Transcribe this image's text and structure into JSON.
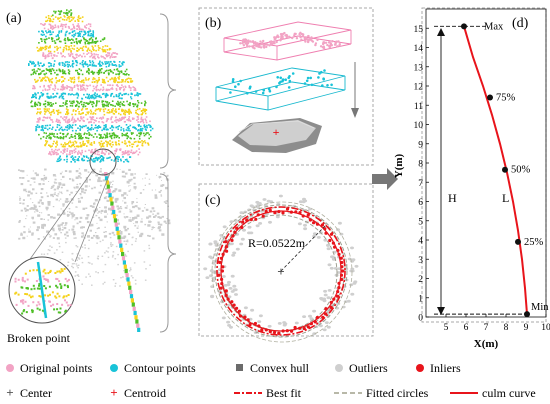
{
  "panels": {
    "a": {
      "label": "(a)",
      "callout": "Broken point"
    },
    "b": {
      "label": "(b)"
    },
    "c": {
      "label": "(c)",
      "radius_text": "R=0.0522m"
    },
    "d": {
      "label": "(d)"
    }
  },
  "chart_data": {
    "type": "line",
    "xlabel": "X(m)",
    "ylabel": "Y(m)",
    "xlim": [
      4,
      10
    ],
    "ylim": [
      0,
      16
    ],
    "x_ticks": [
      "5",
      "6",
      "7",
      "8",
      "9",
      "10"
    ],
    "y_ticks": [
      "0",
      "1",
      "2",
      "3",
      "4",
      "5",
      "6",
      "7",
      "8",
      "9",
      "10",
      "11",
      "12",
      "13",
      "14",
      "15"
    ],
    "series": [
      {
        "name": "culm curve",
        "color": "#e8141b",
        "x": [
          9.05,
          8.95,
          8.8,
          8.6,
          8.35,
          8.05,
          7.7,
          7.3,
          6.85,
          6.35,
          5.9
        ],
        "y": [
          0.15,
          1.5,
          3.0,
          4.5,
          6.0,
          7.5,
          9.0,
          10.5,
          12.0,
          13.5,
          15.1
        ]
      }
    ],
    "points": [
      {
        "x": 9.05,
        "y": 0.15,
        "label": "Min"
      },
      {
        "x": 8.6,
        "y": 3.9,
        "label": "25%"
      },
      {
        "x": 7.95,
        "y": 7.65,
        "label": "50%"
      },
      {
        "x": 7.2,
        "y": 11.4,
        "label": "75%"
      },
      {
        "x": 5.9,
        "y": 15.1,
        "label": "Max"
      }
    ],
    "annotations": {
      "height": "H",
      "length": "L"
    }
  },
  "legend": {
    "row1": [
      {
        "label": "Original points",
        "color": "#f2a3c4",
        "icon": "dot"
      },
      {
        "label": "Contour points",
        "color": "#19c3d8",
        "icon": "dot"
      },
      {
        "label": "Convex hull",
        "color": "#6b6b6b",
        "icon": "square"
      },
      {
        "label": "Outliers",
        "color": "#cfcfcf",
        "icon": "dot"
      },
      {
        "label": "Inliers",
        "color": "#e8141b",
        "icon": "dot"
      }
    ],
    "row2": [
      {
        "label": "Center",
        "color": "#555555",
        "icon": "plus"
      },
      {
        "label": "Centroid",
        "color": "#e8141b",
        "icon": "plus"
      },
      {
        "label": "Best fit",
        "color": "#e8141b",
        "icon": "dashdot"
      },
      {
        "label": "Fitted circles",
        "color": "#b8b8a8",
        "icon": "dashed"
      },
      {
        "label": "culm curve",
        "color": "#e8141b",
        "icon": "solid"
      }
    ]
  },
  "colors": {
    "pink": "#f2a3c4",
    "cyan": "#19c3d8",
    "yellow": "#f5d21c",
    "green": "#4fbf26",
    "grey": "#cfcfcf",
    "red": "#e8141b"
  }
}
